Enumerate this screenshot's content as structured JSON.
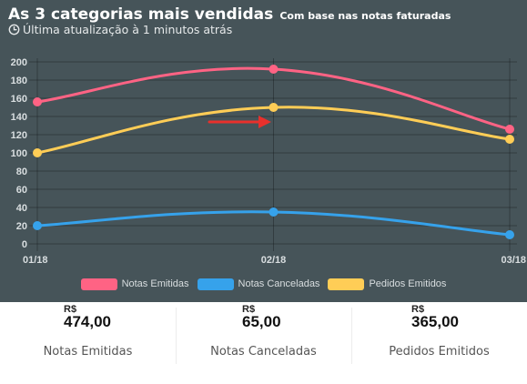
{
  "header": {
    "title": "As 3 categorias mais vendidas",
    "subtitle": "Com base nas notas faturadas",
    "update_text": "Última atualização à 1 minutos atrás",
    "clock_icon": "clock-icon"
  },
  "chart_data": {
    "type": "line",
    "title": "As 3 categorias mais vendidas",
    "subtitle": "Com base nas notas faturadas",
    "categories": [
      "01/18",
      "02/18",
      "03/18"
    ],
    "ylim": [
      0,
      200
    ],
    "yticks": [
      0,
      20,
      40,
      60,
      80,
      100,
      120,
      140,
      160,
      180,
      200
    ],
    "grid": true,
    "legend_position": "bottom",
    "series": [
      {
        "name": "Notas Emitidas",
        "color": "#ff6384",
        "values": [
          156,
          192,
          126
        ]
      },
      {
        "name": "Notas Canceladas",
        "color": "#36a2eb",
        "values": [
          20,
          35,
          10
        ]
      },
      {
        "name": "Pedidos Emitidos",
        "color": "#ffcd56",
        "values": [
          100,
          150,
          115
        ]
      }
    ],
    "annotation": {
      "type": "arrow",
      "color": "#e8302c",
      "icon": "arrow-right-icon"
    }
  },
  "summary": [
    {
      "currency": "R$",
      "amount": "474,00",
      "label": "Notas Emitidas"
    },
    {
      "currency": "R$",
      "amount": "65,00",
      "label": "Notas Canceladas"
    },
    {
      "currency": "R$",
      "amount": "365,00",
      "label": "Pedidos Emitidos"
    }
  ]
}
